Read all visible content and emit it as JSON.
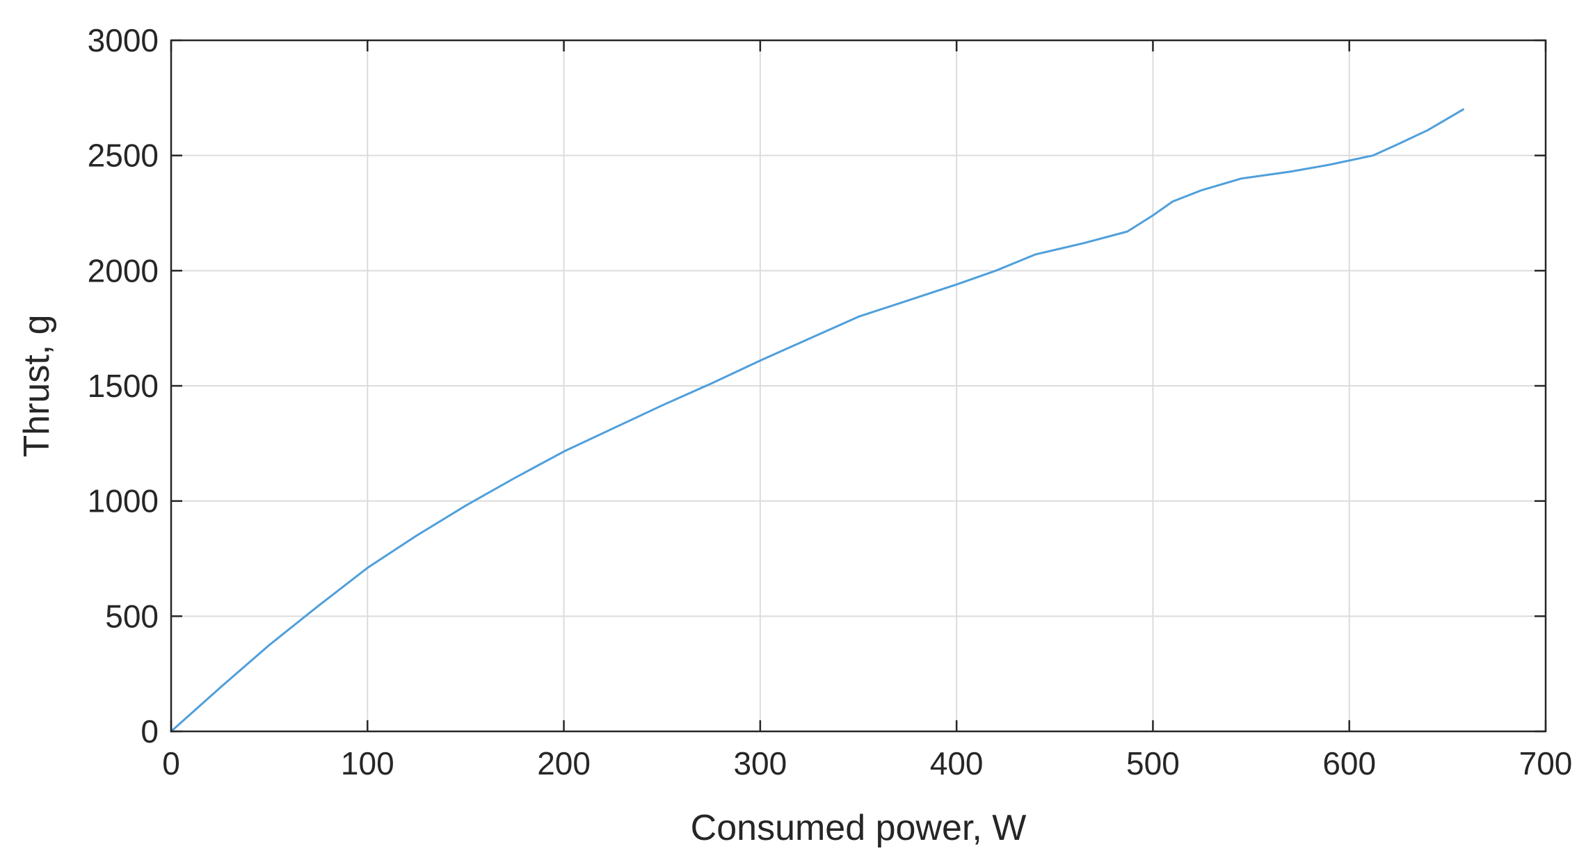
{
  "chart_data": {
    "type": "line",
    "xlabel": "Consumed power, W",
    "ylabel": "Thrust, g",
    "xlim": [
      0,
      700
    ],
    "ylim": [
      0,
      3000
    ],
    "xticks": [
      0,
      100,
      200,
      300,
      400,
      500,
      600,
      700
    ],
    "yticks": [
      0,
      500,
      1000,
      1500,
      2000,
      2500,
      3000
    ],
    "xtick_labels": [
      "0",
      "100",
      "200",
      "300",
      "400",
      "500",
      "600",
      "700"
    ],
    "ytick_labels": [
      "0",
      "500",
      "1000",
      "1500",
      "2000",
      "2500",
      "3000"
    ],
    "grid": true,
    "series": [
      {
        "color": "#4f9fdb",
        "x": [
          0,
          25,
          50,
          75,
          100,
          125,
          150,
          175,
          200,
          225,
          250,
          275,
          300,
          325,
          350,
          375,
          400,
          420,
          440,
          465,
          487,
          500,
          510,
          525,
          545,
          570,
          590,
          612,
          625,
          640,
          658
        ],
        "y": [
          0,
          190,
          375,
          545,
          710,
          850,
          980,
          1100,
          1215,
          1315,
          1415,
          1510,
          1610,
          1705,
          1800,
          1870,
          1940,
          2000,
          2070,
          2120,
          2170,
          2240,
          2300,
          2350,
          2400,
          2430,
          2460,
          2500,
          2550,
          2610,
          2700
        ]
      }
    ]
  }
}
